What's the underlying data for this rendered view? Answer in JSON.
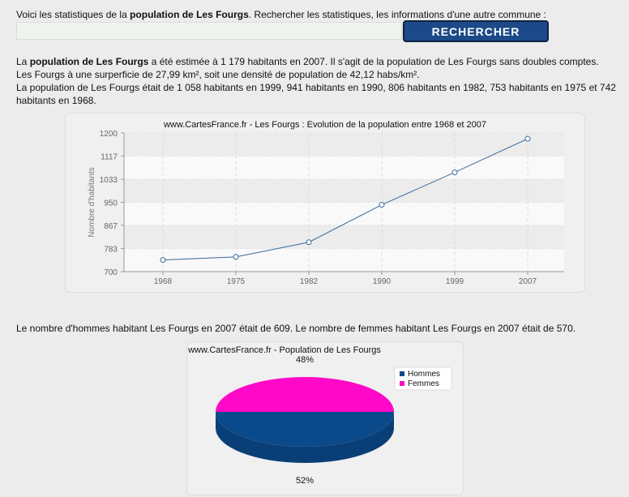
{
  "intro": {
    "prefix": "Voici les statistiques de la ",
    "bold": "population de Les Fourgs",
    "suffix": ". Rechercher les statistiques, les informations d'une autre commune :"
  },
  "search": {
    "value": "",
    "button_label": "RECHERCHER"
  },
  "paragraph": {
    "line1_prefix": "La ",
    "line1_bold": "population de Les Fourgs",
    "line1_suffix": " a été estimée à 1 179 habitants en 2007. Il s'agit de la population de Les Fourgs sans doubles comptes.",
    "line2": "Les Fourgs à une surperficie de 27,99 km², soit une densité de population de 42,12 habs/km².",
    "line3": "La population de Les Fourgs était de 1 058 habitants en 1999, 941 habitants en 1990, 806 habitants en 1982, 753 habitants en 1975 et 742 habitants en 1968."
  },
  "gender_text": "Le nombre d'hommes habitant Les Fourgs en 2007 était de 609. Le nombre de femmes habitant Les Fourgs en 2007 était de 570.",
  "chart_data": [
    {
      "type": "line",
      "title": "www.CartesFrance.fr - Les Fourgs : Evolution de la population entre 1968 et 2007",
      "ylabel": "Nombre d'habitants",
      "xlabel": "",
      "x": [
        "1968",
        "1975",
        "1982",
        "1990",
        "1999",
        "2007"
      ],
      "y": [
        742,
        753,
        806,
        941,
        1058,
        1179
      ],
      "yticks": [
        "700",
        "783",
        "867",
        "950",
        "1033",
        "1117",
        "1200"
      ],
      "ylim": [
        700,
        1200
      ],
      "line_color": "#3a6a96",
      "grid": true
    },
    {
      "type": "pie",
      "title": "www.CartesFrance.fr - Population de Les Fourgs",
      "labels": [
        "Hommes",
        "Femmes"
      ],
      "values": [
        52,
        48
      ],
      "value_labels": [
        "52%",
        "48%"
      ],
      "colors": [
        "#0b4a8a",
        "#ff08c8"
      ],
      "legend": "top-right"
    }
  ],
  "colors": {
    "button_bg": "#1c4a88",
    "background": "#ececec"
  }
}
